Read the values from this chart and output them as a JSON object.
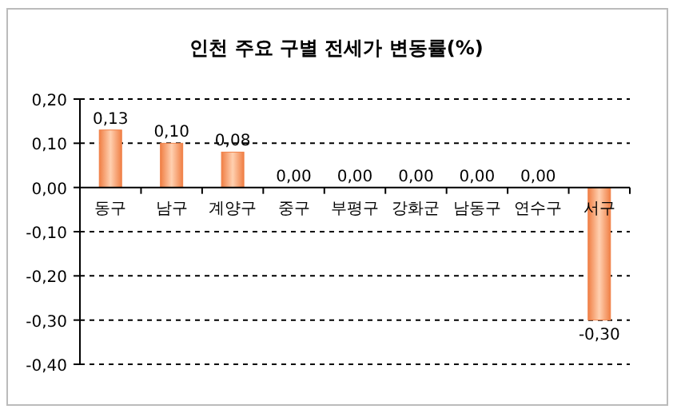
{
  "chart_data": {
    "type": "bar",
    "title": "인천 주요 구별 전세가 변동률(%)",
    "categories": [
      "동구",
      "남구",
      "계양구",
      "중구",
      "부평구",
      "강화군",
      "남동구",
      "연수구",
      "서구"
    ],
    "values": [
      0.13,
      0.1,
      0.08,
      0,
      0,
      0,
      0,
      0,
      -0.3
    ],
    "value_labels": [
      "0,13",
      "0,10",
      "0,08",
      "0,00",
      "0,00",
      "0,00",
      "0,00",
      "0,00",
      "-0,30"
    ],
    "color": "#f07f45",
    "ylim": [
      -0.4,
      0.2
    ],
    "yticks": [
      {
        "value": -0.4,
        "label": "-0,40"
      },
      {
        "value": -0.3,
        "label": "-0,30"
      },
      {
        "value": -0.2,
        "label": "-0,20"
      },
      {
        "value": -0.1,
        "label": "-0,10"
      },
      {
        "value": 0,
        "label": "0,00"
      },
      {
        "value": 0.1,
        "label": "0,10"
      },
      {
        "value": 0.2,
        "label": "0,20"
      }
    ],
    "grid": "y"
  }
}
